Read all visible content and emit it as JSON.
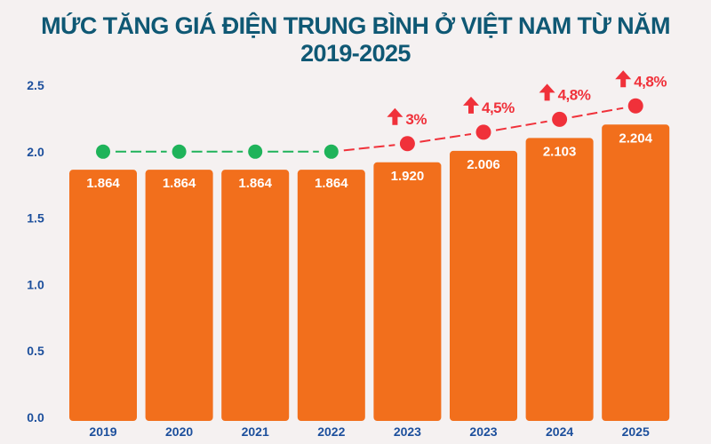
{
  "chart_data": {
    "type": "bar",
    "title": "MỨC TĂNG GIÁ ĐIỆN TRUNG BÌNH Ở VIỆT NAM TỪ NĂM 2019-2025",
    "categories": [
      "2019",
      "2020",
      "2021",
      "2022",
      "2023",
      "2023",
      "2024",
      "2025"
    ],
    "values": [
      1.864,
      1.864,
      1.864,
      1.864,
      1.92,
      2.006,
      2.103,
      2.204
    ],
    "value_labels": [
      "1.864",
      "1.864",
      "1.864",
      "1.864",
      "1.920",
      "2.006",
      "2.103",
      "2.204"
    ],
    "increase_labels": [
      "",
      "",
      "",
      "",
      "3%",
      "4,5%",
      "4,8%",
      "4,8%"
    ],
    "yticks": [
      "0.0",
      "0.5",
      "1.0",
      "1.5",
      "2.0",
      "2.5"
    ],
    "ylim": [
      0,
      2.5
    ],
    "grid": false,
    "xlabel": "",
    "ylabel": "",
    "colors": {
      "bar": "#f26f1c",
      "no_change": "#1fb35a",
      "increase": "#f0313a",
      "axis_text": "#1c4f9c",
      "title": "#0f5874"
    }
  }
}
